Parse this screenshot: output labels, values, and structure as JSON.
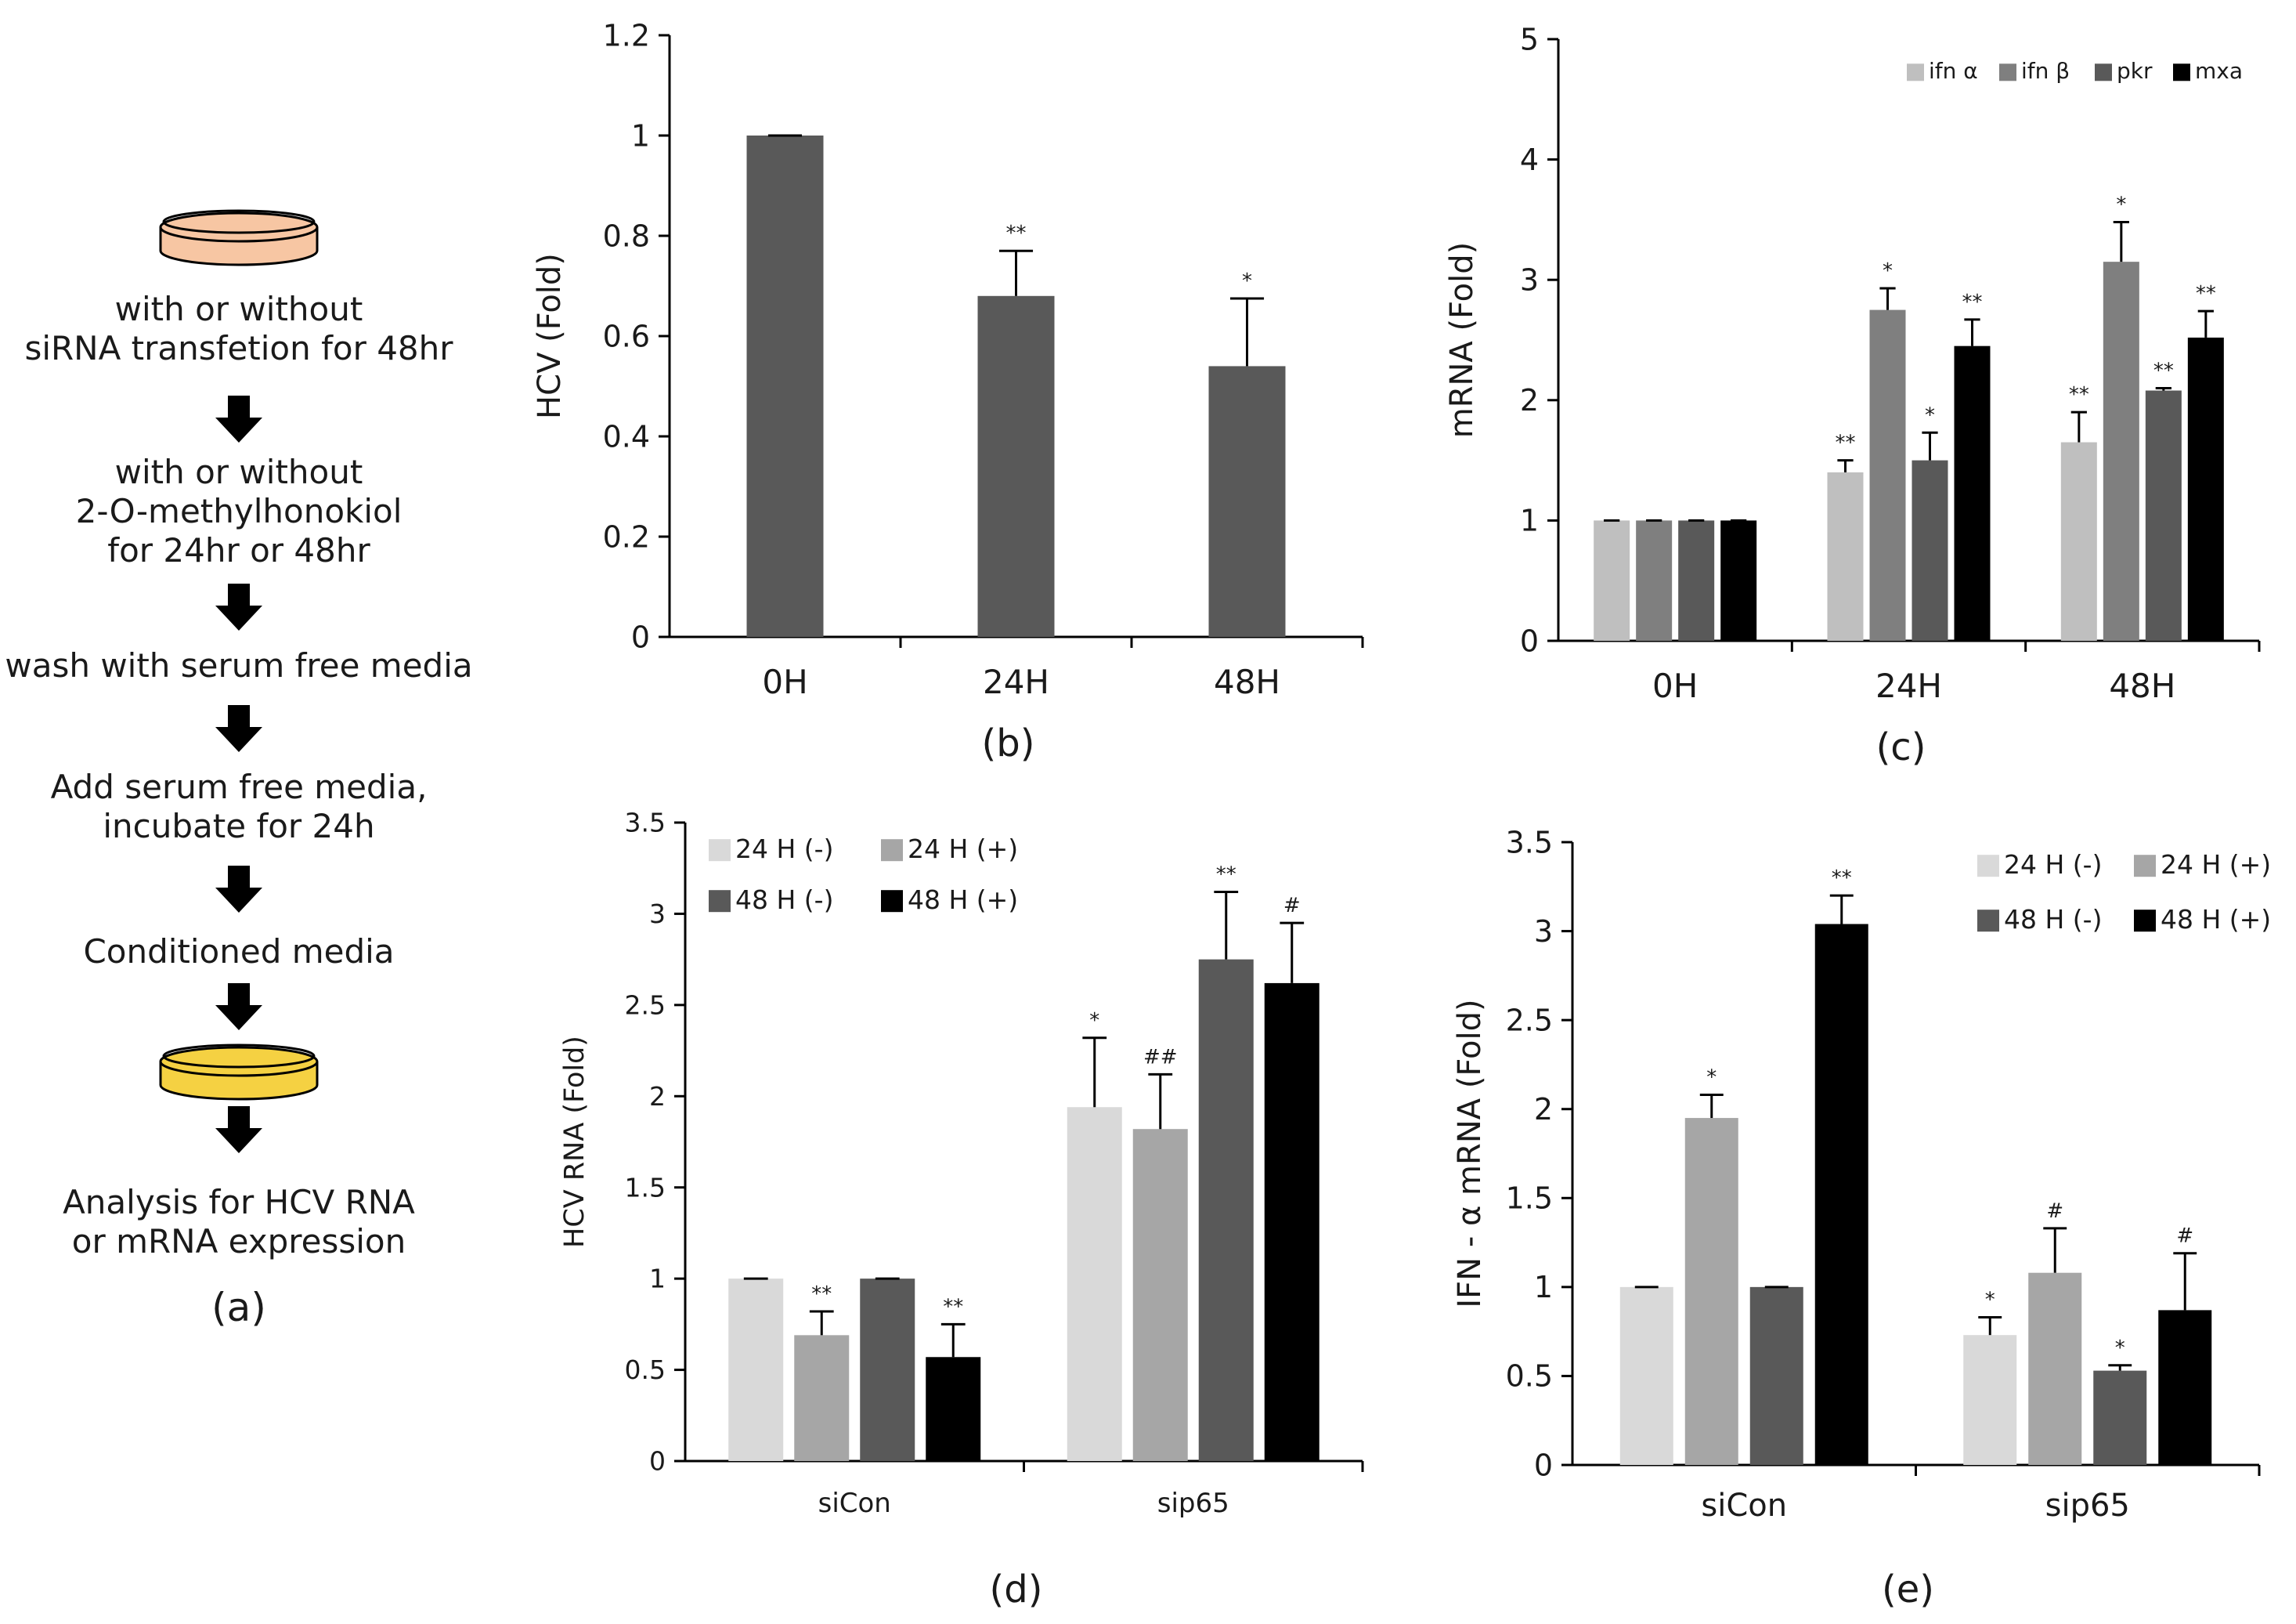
{
  "flowchart": {
    "steps": [
      "with or without",
      "siRNA transfetion for 48hr",
      "with or without",
      "2-O-methylhonokiol",
      "for 24hr or 48hr",
      "wash with serum free media",
      "Add serum free media,",
      "incubate for 24h",
      "Conditioned media",
      "Analysis for HCV RNA",
      "or mRNA expression"
    ],
    "label": "(a)",
    "dish_colors": {
      "orange": "#f7c6a3",
      "yellow": "#f5d142"
    }
  },
  "colors": {
    "panel_b_bar": "#595959",
    "light": "#d9d9d9",
    "mid_light": "#bfbfbf",
    "mid": "#a6a6a6",
    "mid_dark": "#7f7f7f",
    "dark": "#595959",
    "black": "#000000"
  },
  "chart_data": [
    {
      "id": "b",
      "type": "bar",
      "panel_label": "(b)",
      "title": "",
      "xlabel": "",
      "ylabel": "HCV (Fold)",
      "ylim": [
        0,
        1.2
      ],
      "yticks": [
        0,
        0.2,
        0.4,
        0.6,
        0.8,
        1,
        1.2
      ],
      "ytick_labels": [
        "0",
        "0.2",
        "0.4",
        "0.6",
        "0.8",
        "1",
        "1.2"
      ],
      "categories": [
        "0H",
        "24H",
        "48H"
      ],
      "series": [
        {
          "name": "HCV",
          "color": "#595959",
          "values": [
            1.0,
            0.68,
            0.54
          ],
          "errors": [
            0.0,
            0.09,
            0.135
          ],
          "annotations": [
            "",
            "**",
            "*"
          ]
        }
      ]
    },
    {
      "id": "c",
      "type": "bar",
      "panel_label": "(c)",
      "title": "",
      "xlabel": "",
      "ylabel": "mRNA (Fold)",
      "ylim": [
        0,
        5
      ],
      "yticks": [
        0,
        1,
        2,
        3,
        4,
        5
      ],
      "ytick_labels": [
        "0",
        "1",
        "2",
        "3",
        "4",
        "5"
      ],
      "categories": [
        "0H",
        "24H",
        "48H"
      ],
      "legend_position": "top-right",
      "legend_rows": 1,
      "series": [
        {
          "name": "ifn α",
          "color": "#bfbfbf",
          "values": [
            1.0,
            1.4,
            1.65
          ],
          "errors": [
            0.0,
            0.1,
            0.25
          ],
          "annotations": [
            "",
            "**",
            "**"
          ]
        },
        {
          "name": "ifn β",
          "color": "#7f7f7f",
          "values": [
            1.0,
            2.75,
            3.15
          ],
          "errors": [
            0.0,
            0.18,
            0.33
          ],
          "annotations": [
            "",
            "*",
            "*"
          ]
        },
        {
          "name": "pkr",
          "color": "#595959",
          "values": [
            1.0,
            1.5,
            2.08
          ],
          "errors": [
            0.0,
            0.23,
            0.02
          ],
          "annotations": [
            "",
            "*",
            "**"
          ]
        },
        {
          "name": "mxa",
          "color": "#000000",
          "values": [
            1.0,
            2.45,
            2.52
          ],
          "errors": [
            0.0,
            0.22,
            0.22
          ],
          "annotations": [
            "",
            "**",
            "**"
          ]
        }
      ]
    },
    {
      "id": "d",
      "type": "bar",
      "panel_label": "(d)",
      "title": "",
      "xlabel": "",
      "ylabel": "HCV RNA (Fold)",
      "ylim": [
        0,
        3.5
      ],
      "yticks": [
        0,
        0.5,
        1,
        1.5,
        2,
        2.5,
        3,
        3.5
      ],
      "ytick_labels": [
        "0",
        "0.5",
        "1",
        "1.5",
        "2",
        "2.5",
        "3",
        "3.5"
      ],
      "categories": [
        "siCon",
        "sip65"
      ],
      "legend_position": "top-left",
      "legend_rows": 2,
      "series": [
        {
          "name": "24 H (-)",
          "color": "#d9d9d9",
          "values": [
            1.0,
            1.94
          ],
          "errors": [
            0.0,
            0.38
          ],
          "annotations": [
            "",
            "*"
          ]
        },
        {
          "name": "24 H (+)",
          "color": "#a6a6a6",
          "values": [
            0.69,
            1.82
          ],
          "errors": [
            0.13,
            0.3
          ],
          "annotations": [
            "**",
            "##"
          ]
        },
        {
          "name": "48 H (-)",
          "color": "#595959",
          "values": [
            1.0,
            2.75
          ],
          "errors": [
            0.0,
            0.37
          ],
          "annotations": [
            "",
            "**"
          ]
        },
        {
          "name": "48 H (+)",
          "color": "#000000",
          "values": [
            0.57,
            2.62
          ],
          "errors": [
            0.18,
            0.33
          ],
          "annotations": [
            "**",
            "#"
          ]
        }
      ]
    },
    {
      "id": "e",
      "type": "bar",
      "panel_label": "(e)",
      "title": "",
      "xlabel": "",
      "ylabel": "IFN - α mRNA (Fold)",
      "ylim": [
        0,
        3.5
      ],
      "yticks": [
        0,
        0.5,
        1,
        1.5,
        2,
        2.5,
        3,
        3.5
      ],
      "ytick_labels": [
        "0",
        "0.5",
        "1",
        "1.5",
        "2",
        "2.5",
        "3",
        "3.5"
      ],
      "categories": [
        "siCon",
        "sip65"
      ],
      "legend_position": "top-right",
      "legend_rows": 2,
      "series": [
        {
          "name": "24 H (-)",
          "color": "#d9d9d9",
          "values": [
            1.0,
            0.73
          ],
          "errors": [
            0.0,
            0.1
          ],
          "annotations": [
            "",
            "*"
          ]
        },
        {
          "name": "24 H (+)",
          "color": "#a6a6a6",
          "values": [
            1.95,
            1.08
          ],
          "errors": [
            0.13,
            0.25
          ],
          "annotations": [
            "*",
            "#"
          ]
        },
        {
          "name": "48 H (-)",
          "color": "#595959",
          "values": [
            1.0,
            0.53
          ],
          "errors": [
            0.0,
            0.03
          ],
          "annotations": [
            "",
            "*"
          ]
        },
        {
          "name": "48 H (+)",
          "color": "#000000",
          "values": [
            3.04,
            0.87
          ],
          "errors": [
            0.16,
            0.32
          ],
          "annotations": [
            "**",
            "#"
          ]
        }
      ]
    }
  ]
}
